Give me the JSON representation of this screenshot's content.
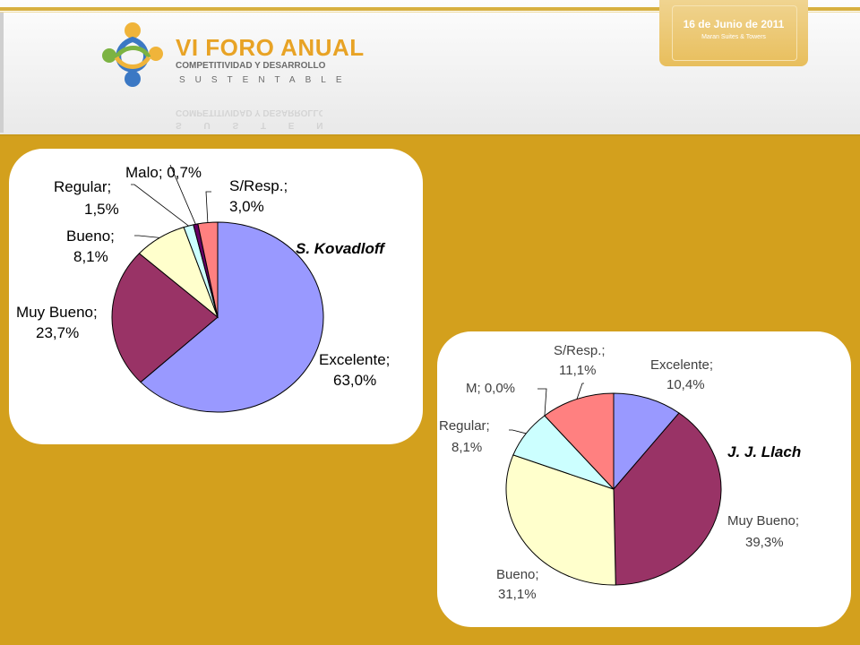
{
  "header": {
    "logo_title": "VI FORO ANUAL",
    "logo_subtitle": "COMPETITIVIDAD Y DESARROLLO",
    "logo_subtitle2": "SUSTENTABLE",
    "date": "16 de Junio de 2011",
    "venue": "Maran Suites & Towers"
  },
  "colors": {
    "background": "#d3a01d",
    "panel": "#ffffff"
  },
  "chart_data": [
    {
      "type": "pie",
      "title": "S. Kovadloff",
      "slices": [
        {
          "label": "Excelente",
          "value": 63.0,
          "text": "Excelente;",
          "pct": "63,0%",
          "color": "#9999ff"
        },
        {
          "label": "Muy Bueno",
          "value": 23.7,
          "text": "Muy Bueno;",
          "pct": "23,7%",
          "color": "#993366"
        },
        {
          "label": "Bueno",
          "value": 8.1,
          "text": "Bueno;",
          "pct": "8,1%",
          "color": "#ffffcc"
        },
        {
          "label": "Regular",
          "value": 1.5,
          "text": "Regular;",
          "pct": "1,5%",
          "color": "#ccffff"
        },
        {
          "label": "Malo",
          "value": 0.7,
          "text": "Malo; 0,7%",
          "pct": "",
          "color": "#660066"
        },
        {
          "label": "S/Resp.",
          "value": 3.0,
          "text": "S/Resp.;",
          "pct": "3,0%",
          "color": "#ff8080"
        }
      ]
    },
    {
      "type": "pie",
      "title": "J. J. Llach",
      "slices": [
        {
          "label": "Excelente",
          "value": 10.4,
          "text": "Excelente;",
          "pct": "10,4%",
          "color": "#9999ff"
        },
        {
          "label": "Muy Bueno",
          "value": 39.3,
          "text": "Muy Bueno;",
          "pct": "39,3%",
          "color": "#993366"
        },
        {
          "label": "Bueno",
          "value": 31.1,
          "text": "Bueno;",
          "pct": "31,1%",
          "color": "#ffffcc"
        },
        {
          "label": "Regular",
          "value": 8.1,
          "text": "Regular;",
          "pct": "8,1%",
          "color": "#ccffff"
        },
        {
          "label": "M",
          "value": 0.0,
          "text": "M; 0,0%",
          "pct": "",
          "color": "#660066"
        },
        {
          "label": "S/Resp.",
          "value": 11.1,
          "text": "S/Resp.;",
          "pct": "11,1%",
          "color": "#ff8080"
        }
      ]
    }
  ]
}
